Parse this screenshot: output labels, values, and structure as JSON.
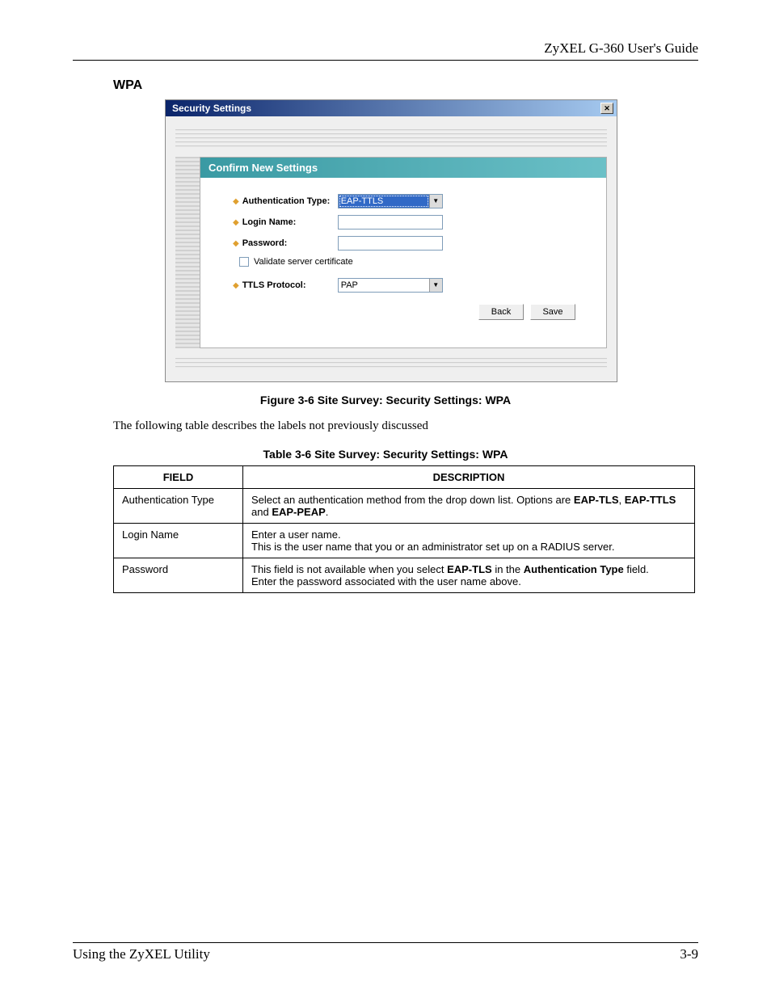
{
  "header": {
    "title": "ZyXEL G-360 User's Guide"
  },
  "section": {
    "heading": "WPA"
  },
  "screenshot": {
    "title": "Security Settings",
    "close_glyph": "✕",
    "panel_title": "Confirm New Settings",
    "titlebar_gradient": {
      "from": "#0a246a",
      "to": "#a6caf0"
    },
    "panel_header_gradient": {
      "from": "#3a9aa3",
      "to": "#6bc0c7"
    },
    "bullet_color": "#e0a030",
    "fields": {
      "auth_type_label": "Authentication Type:",
      "auth_type_value": "EAP-TTLS",
      "login_label": "Login Name:",
      "password_label": "Password:",
      "validate_label": "Validate server certificate",
      "ttls_label": "TTLS Protocol:",
      "ttls_value": "PAP"
    },
    "buttons": {
      "back": "Back",
      "save": "Save"
    }
  },
  "figure_caption": "Figure 3-6 Site Survey: Security Settings: WPA",
  "body_text": "The following table describes the labels not previously discussed",
  "table_caption": "Table 3-6 Site Survey: Security Settings: WPA",
  "table": {
    "columns": [
      "FIELD",
      "DESCRIPTION"
    ],
    "rows": [
      {
        "field": "Authentication Type",
        "desc_html": "Select an authentication method from the drop down list. Options are <b>EAP-TLS</b>, <b>EAP-TTLS</b> and <b>EAP-PEAP</b>."
      },
      {
        "field": "Login Name",
        "desc_html": "Enter a user name.<br>This is the user name that you or an administrator set up on a RADIUS server."
      },
      {
        "field": "Password",
        "desc_html": "This field is not available when you select <b>EAP-TLS</b> in the <b>Authentication Type</b> field.<br>Enter the password associated with the user name above."
      }
    ]
  },
  "footer": {
    "left": "Using the ZyXEL Utility",
    "right": "3-9"
  }
}
